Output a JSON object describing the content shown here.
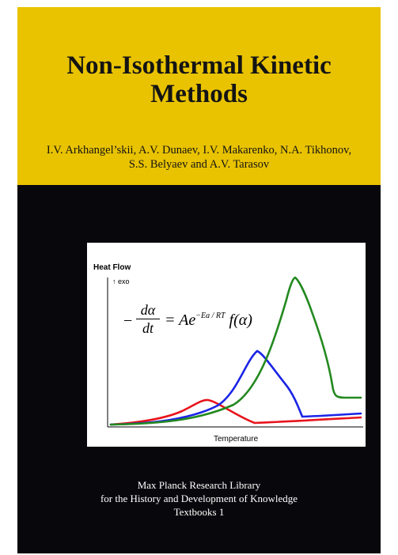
{
  "cover": {
    "title_lines": [
      "Non-Isothermal Kinetic",
      "Methods"
    ],
    "author_lines": [
      "I.V. Arkhangel’skii, A.V. Dunaev, I.V. Makarenko, N.A. Tikhonov,",
      "S.S. Belyaev and A.V. Tarasov"
    ],
    "series_lines": [
      "Max Planck Research Library",
      "for the History and Development of Knowledge",
      "Textbooks 1"
    ],
    "colors": {
      "band": "#e9c300",
      "background": "#08080c"
    }
  },
  "figure": {
    "ylabel": "Heat Flow",
    "exo_label": "↑ exo",
    "xlabel": "Temperature",
    "formula": {
      "minus": "−",
      "numerator": "dα",
      "denominator": "dt",
      "rhs_main": "= Ae",
      "exponent": "−Ea / RT",
      "rhs_tail": " f(α)"
    },
    "colors": {
      "red": "#e8141c",
      "blue": "#1a24e6",
      "green": "#23891f"
    }
  }
}
